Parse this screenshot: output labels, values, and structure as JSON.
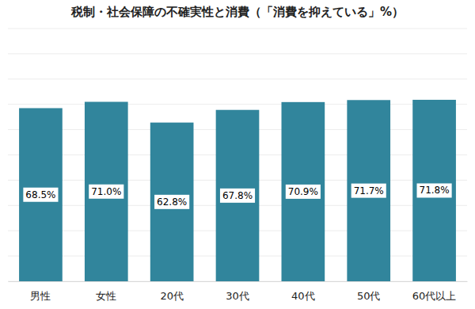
{
  "chart_data": {
    "type": "bar",
    "title": "税制・社会保障の不確実性と消費（「消費を抑えている」%）",
    "categories": [
      "男性",
      "女性",
      "20代",
      "30代",
      "40代",
      "50代",
      "60代以上"
    ],
    "values": [
      68.5,
      71.0,
      62.8,
      67.8,
      70.9,
      71.7,
      71.8
    ],
    "value_labels": [
      "68.5%",
      "71.0%",
      "62.8%",
      "67.8%",
      "70.9%",
      "71.7%",
      "71.8%"
    ],
    "color": "#31859c",
    "ylim": [
      0,
      100
    ],
    "yticks": [
      0,
      10,
      20,
      30,
      40,
      50,
      60,
      70,
      80,
      90,
      100
    ],
    "grid": true,
    "data_labels": true,
    "tick_labels": "x"
  }
}
